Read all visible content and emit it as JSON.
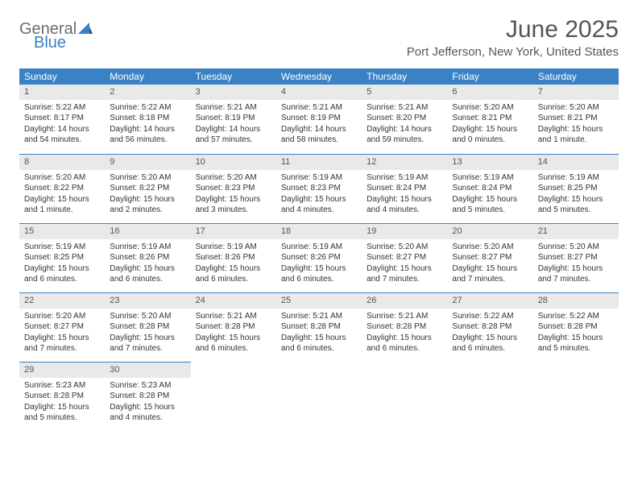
{
  "logo": {
    "word1": "General",
    "word2": "Blue"
  },
  "title": "June 2025",
  "location": "Port Jefferson, New York, United States",
  "columns": [
    "Sunday",
    "Monday",
    "Tuesday",
    "Wednesday",
    "Thursday",
    "Friday",
    "Saturday"
  ],
  "colors": {
    "header_bg": "#3b82c4",
    "header_text": "#ffffff",
    "daynum_bg": "#e9e9e9",
    "day_border": "#3b82c4",
    "text": "#333333",
    "title_text": "#555555"
  },
  "weeks": [
    [
      {
        "n": "1",
        "sunrise": "Sunrise: 5:22 AM",
        "sunset": "Sunset: 8:17 PM",
        "daylight": "Daylight: 14 hours and 54 minutes."
      },
      {
        "n": "2",
        "sunrise": "Sunrise: 5:22 AM",
        "sunset": "Sunset: 8:18 PM",
        "daylight": "Daylight: 14 hours and 56 minutes."
      },
      {
        "n": "3",
        "sunrise": "Sunrise: 5:21 AM",
        "sunset": "Sunset: 8:19 PM",
        "daylight": "Daylight: 14 hours and 57 minutes."
      },
      {
        "n": "4",
        "sunrise": "Sunrise: 5:21 AM",
        "sunset": "Sunset: 8:19 PM",
        "daylight": "Daylight: 14 hours and 58 minutes."
      },
      {
        "n": "5",
        "sunrise": "Sunrise: 5:21 AM",
        "sunset": "Sunset: 8:20 PM",
        "daylight": "Daylight: 14 hours and 59 minutes."
      },
      {
        "n": "6",
        "sunrise": "Sunrise: 5:20 AM",
        "sunset": "Sunset: 8:21 PM",
        "daylight": "Daylight: 15 hours and 0 minutes."
      },
      {
        "n": "7",
        "sunrise": "Sunrise: 5:20 AM",
        "sunset": "Sunset: 8:21 PM",
        "daylight": "Daylight: 15 hours and 1 minute."
      }
    ],
    [
      {
        "n": "8",
        "sunrise": "Sunrise: 5:20 AM",
        "sunset": "Sunset: 8:22 PM",
        "daylight": "Daylight: 15 hours and 1 minute."
      },
      {
        "n": "9",
        "sunrise": "Sunrise: 5:20 AM",
        "sunset": "Sunset: 8:22 PM",
        "daylight": "Daylight: 15 hours and 2 minutes."
      },
      {
        "n": "10",
        "sunrise": "Sunrise: 5:20 AM",
        "sunset": "Sunset: 8:23 PM",
        "daylight": "Daylight: 15 hours and 3 minutes."
      },
      {
        "n": "11",
        "sunrise": "Sunrise: 5:19 AM",
        "sunset": "Sunset: 8:23 PM",
        "daylight": "Daylight: 15 hours and 4 minutes."
      },
      {
        "n": "12",
        "sunrise": "Sunrise: 5:19 AM",
        "sunset": "Sunset: 8:24 PM",
        "daylight": "Daylight: 15 hours and 4 minutes."
      },
      {
        "n": "13",
        "sunrise": "Sunrise: 5:19 AM",
        "sunset": "Sunset: 8:24 PM",
        "daylight": "Daylight: 15 hours and 5 minutes."
      },
      {
        "n": "14",
        "sunrise": "Sunrise: 5:19 AM",
        "sunset": "Sunset: 8:25 PM",
        "daylight": "Daylight: 15 hours and 5 minutes."
      }
    ],
    [
      {
        "n": "15",
        "sunrise": "Sunrise: 5:19 AM",
        "sunset": "Sunset: 8:25 PM",
        "daylight": "Daylight: 15 hours and 6 minutes."
      },
      {
        "n": "16",
        "sunrise": "Sunrise: 5:19 AM",
        "sunset": "Sunset: 8:26 PM",
        "daylight": "Daylight: 15 hours and 6 minutes."
      },
      {
        "n": "17",
        "sunrise": "Sunrise: 5:19 AM",
        "sunset": "Sunset: 8:26 PM",
        "daylight": "Daylight: 15 hours and 6 minutes."
      },
      {
        "n": "18",
        "sunrise": "Sunrise: 5:19 AM",
        "sunset": "Sunset: 8:26 PM",
        "daylight": "Daylight: 15 hours and 6 minutes."
      },
      {
        "n": "19",
        "sunrise": "Sunrise: 5:20 AM",
        "sunset": "Sunset: 8:27 PM",
        "daylight": "Daylight: 15 hours and 7 minutes."
      },
      {
        "n": "20",
        "sunrise": "Sunrise: 5:20 AM",
        "sunset": "Sunset: 8:27 PM",
        "daylight": "Daylight: 15 hours and 7 minutes."
      },
      {
        "n": "21",
        "sunrise": "Sunrise: 5:20 AM",
        "sunset": "Sunset: 8:27 PM",
        "daylight": "Daylight: 15 hours and 7 minutes."
      }
    ],
    [
      {
        "n": "22",
        "sunrise": "Sunrise: 5:20 AM",
        "sunset": "Sunset: 8:27 PM",
        "daylight": "Daylight: 15 hours and 7 minutes."
      },
      {
        "n": "23",
        "sunrise": "Sunrise: 5:20 AM",
        "sunset": "Sunset: 8:28 PM",
        "daylight": "Daylight: 15 hours and 7 minutes."
      },
      {
        "n": "24",
        "sunrise": "Sunrise: 5:21 AM",
        "sunset": "Sunset: 8:28 PM",
        "daylight": "Daylight: 15 hours and 6 minutes."
      },
      {
        "n": "25",
        "sunrise": "Sunrise: 5:21 AM",
        "sunset": "Sunset: 8:28 PM",
        "daylight": "Daylight: 15 hours and 6 minutes."
      },
      {
        "n": "26",
        "sunrise": "Sunrise: 5:21 AM",
        "sunset": "Sunset: 8:28 PM",
        "daylight": "Daylight: 15 hours and 6 minutes."
      },
      {
        "n": "27",
        "sunrise": "Sunrise: 5:22 AM",
        "sunset": "Sunset: 8:28 PM",
        "daylight": "Daylight: 15 hours and 6 minutes."
      },
      {
        "n": "28",
        "sunrise": "Sunrise: 5:22 AM",
        "sunset": "Sunset: 8:28 PM",
        "daylight": "Daylight: 15 hours and 5 minutes."
      }
    ],
    [
      {
        "n": "29",
        "sunrise": "Sunrise: 5:23 AM",
        "sunset": "Sunset: 8:28 PM",
        "daylight": "Daylight: 15 hours and 5 minutes."
      },
      {
        "n": "30",
        "sunrise": "Sunrise: 5:23 AM",
        "sunset": "Sunset: 8:28 PM",
        "daylight": "Daylight: 15 hours and 4 minutes."
      },
      {
        "empty": true
      },
      {
        "empty": true
      },
      {
        "empty": true
      },
      {
        "empty": true
      },
      {
        "empty": true
      }
    ]
  ]
}
